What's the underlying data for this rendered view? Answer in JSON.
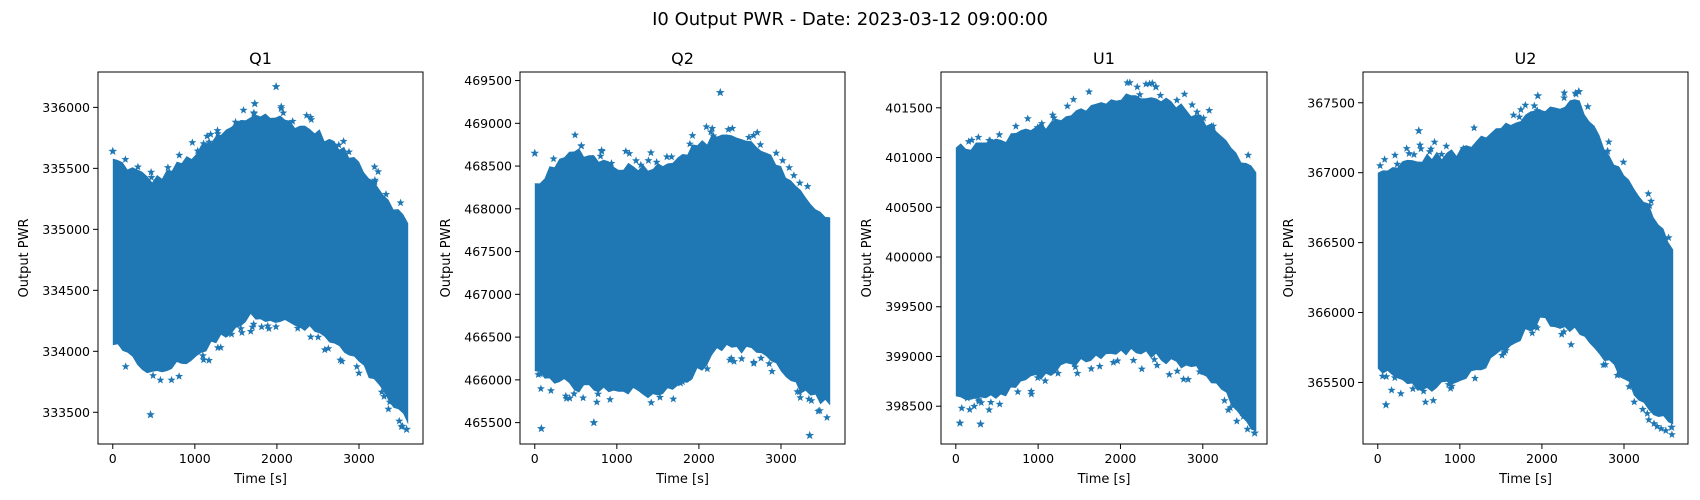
{
  "figure": {
    "suptitle": "I0 Output PWR - Date: 2023-03-12 09:00:00"
  },
  "style": {
    "series_color": "#1f77b4",
    "marker": "star"
  },
  "chart_data": [
    {
      "type": "scatter",
      "title": "Q1",
      "xlabel": "Time [s]",
      "ylabel": "Output PWR",
      "xlim": [
        -180,
        3780
      ],
      "ylim": [
        333240,
        336290
      ],
      "xticks": [
        0,
        1000,
        2000,
        3000
      ],
      "yticks": [
        333500,
        334000,
        334500,
        335000,
        335500,
        336000
      ],
      "envelope": {
        "x": [
          0,
          500,
          1000,
          1500,
          1750,
          2000,
          2500,
          3000,
          3300,
          3600
        ],
        "upper": [
          335580,
          335400,
          335620,
          335860,
          335950,
          335920,
          335800,
          335550,
          335300,
          335050
        ],
        "lower": [
          334050,
          333800,
          333950,
          334200,
          334300,
          334250,
          334150,
          333900,
          333650,
          333400
        ]
      },
      "outliers": [
        [
          460,
          333480
        ],
        [
          1990,
          336170
        ],
        [
          1730,
          336030
        ],
        [
          3580,
          333360
        ],
        [
          0,
          335640
        ]
      ]
    },
    {
      "type": "scatter",
      "title": "Q2",
      "xlabel": "Time [s]",
      "ylabel": "Output PWR",
      "xlim": [
        -180,
        3780
      ],
      "ylim": [
        465250,
        469600
      ],
      "xticks": [
        0,
        1000,
        2000,
        3000
      ],
      "yticks": [
        465500,
        466000,
        466500,
        467000,
        467500,
        468000,
        468500,
        469000,
        469500
      ],
      "envelope": {
        "x": [
          0,
          500,
          1000,
          1500,
          2000,
          2300,
          2800,
          3200,
          3600
        ],
        "upper": [
          468300,
          468700,
          468500,
          468500,
          468750,
          468900,
          468700,
          468200,
          467900
        ],
        "lower": [
          466100,
          465900,
          465900,
          465800,
          466100,
          466400,
          466300,
          465900,
          465700
        ]
      },
      "outliers": [
        [
          80,
          465430
        ],
        [
          2260,
          469360
        ],
        [
          3350,
          465350
        ],
        [
          0,
          468650
        ],
        [
          720,
          465500
        ]
      ]
    },
    {
      "type": "scatter",
      "title": "U1",
      "xlabel": "Time [s]",
      "ylabel": "Output PWR",
      "xlim": [
        -180,
        3780
      ],
      "ylim": [
        398120,
        401860
      ],
      "xticks": [
        0,
        1000,
        2000,
        3000
      ],
      "yticks": [
        398500,
        399000,
        399500,
        400000,
        400500,
        401000,
        401500
      ],
      "envelope": {
        "x": [
          0,
          500,
          1000,
          1500,
          2000,
          2400,
          3000,
          3400,
          3650
        ],
        "upper": [
          401100,
          401150,
          401300,
          401500,
          401600,
          401650,
          401400,
          401050,
          400850
        ],
        "lower": [
          398600,
          398600,
          398800,
          398950,
          399050,
          399000,
          398850,
          398500,
          398250
        ]
      },
      "outliers": [
        [
          50,
          398330
        ],
        [
          2430,
          401710
        ],
        [
          3630,
          398230
        ],
        [
          300,
          398320
        ]
      ]
    },
    {
      "type": "scatter",
      "title": "U2",
      "xlabel": "Time [s]",
      "ylabel": "Output PWR",
      "xlim": [
        -180,
        3780
      ],
      "ylim": [
        365060,
        367720
      ],
      "xticks": [
        0,
        1000,
        2000,
        3000
      ],
      "yticks": [
        365500,
        366000,
        366500,
        367000,
        367500
      ],
      "envelope": {
        "x": [
          0,
          500,
          1000,
          1500,
          2000,
          2450,
          2900,
          3300,
          3600
        ],
        "upper": [
          367000,
          367100,
          367150,
          367350,
          367450,
          367500,
          367050,
          366750,
          366450
        ],
        "lower": [
          365600,
          365450,
          365500,
          365700,
          365950,
          365850,
          365600,
          365300,
          365200
        ]
      },
      "outliers": [
        [
          500,
          367300
        ],
        [
          2450,
          367580
        ],
        [
          3580,
          365180
        ],
        [
          100,
          365340
        ],
        [
          1950,
          367550
        ]
      ]
    }
  ]
}
